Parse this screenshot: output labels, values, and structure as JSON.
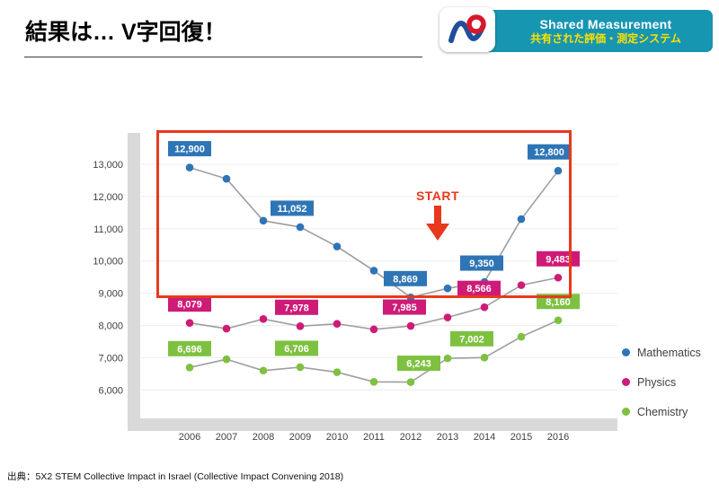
{
  "header": {
    "title": "結果は… V字回復！"
  },
  "badge": {
    "title_en": "Shared Measurement",
    "title_ja": "共有された評価・測定システム",
    "bg_color": "#1796B2",
    "text_color_en": "#FFFFFF",
    "text_color_ja": "#FFE100"
  },
  "highlight": {
    "color": "#E8391D"
  },
  "footer": {
    "source": "出典：5X2 STEM Collective Impact in Israel (Collective Impact Convening 2018)"
  },
  "chart_data": {
    "type": "line",
    "title": "",
    "xlabel": "",
    "ylabel": "",
    "ylim": [
      6000,
      13000
    ],
    "grid": true,
    "legend_position": "right",
    "line_color": "#9E9E9E",
    "axis_band_color": "#D9D9D9",
    "x_labels": [
      "2006",
      "2007",
      "2008",
      "2009",
      "2010",
      "2011",
      "2012",
      "2013",
      "2014",
      "2015",
      "2016"
    ],
    "y_ticks": [
      {
        "value": 6000,
        "label": "6,000"
      },
      {
        "value": 7000,
        "label": "7,000"
      },
      {
        "value": 8000,
        "label": "8,000"
      },
      {
        "value": 9000,
        "label": "9,000"
      },
      {
        "value": 10000,
        "label": "10,000"
      },
      {
        "value": 11000,
        "label": "11,000"
      },
      {
        "value": 12000,
        "label": "12,000"
      },
      {
        "value": 13000,
        "label": "13,000"
      }
    ],
    "series": [
      {
        "name": "Mathematics",
        "color": "#2E75B6",
        "values": [
          12900,
          12550,
          11250,
          11052,
          10450,
          9700,
          8869,
          9150,
          9350,
          11300,
          12800
        ],
        "labels": [
          {
            "i": 0,
            "text": "12,900"
          },
          {
            "i": 3,
            "text": "11,052",
            "dx": -9
          },
          {
            "i": 6,
            "text": "8,869",
            "dx": -6
          },
          {
            "i": 8,
            "text": "9,350",
            "dx": -3
          },
          {
            "i": 10,
            "text": "12,800",
            "dx": -10
          }
        ]
      },
      {
        "name": "Physics",
        "color": "#CE1B77",
        "values": [
          8079,
          7900,
          8200,
          7978,
          8050,
          7880,
          7985,
          8250,
          8566,
          9250,
          9483
        ],
        "labels": [
          {
            "i": 0,
            "text": "8,079"
          },
          {
            "i": 3,
            "text": "7,978",
            "dx": -4
          },
          {
            "i": 6,
            "text": "7,985",
            "dx": -7
          },
          {
            "i": 8,
            "text": "8,566",
            "dx": -6
          },
          {
            "i": 10,
            "text": "9,483"
          }
        ]
      },
      {
        "name": "Chemistry",
        "color": "#7EC141",
        "values": [
          6696,
          6950,
          6600,
          6706,
          6550,
          6250,
          6243,
          6980,
          7002,
          7650,
          8160
        ],
        "labels": [
          {
            "i": 0,
            "text": "6,696"
          },
          {
            "i": 3,
            "text": "6,706",
            "dx": -4
          },
          {
            "i": 6,
            "text": "6,243",
            "dx": 9
          },
          {
            "i": 8,
            "text": "7,002",
            "dx": -14
          },
          {
            "i": 10,
            "text": "8,160"
          }
        ]
      }
    ],
    "annotations": {
      "start_text": "START"
    }
  }
}
